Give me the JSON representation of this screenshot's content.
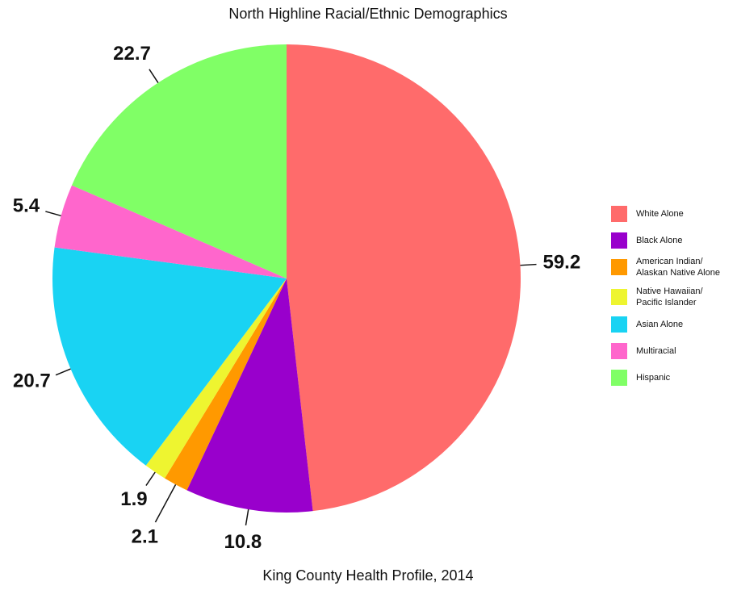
{
  "chart_data": {
    "type": "pie",
    "title": "North Highline Racial/Ethnic Demographics",
    "subtitle": "King County Health Profile, 2014",
    "categories": [
      "White Alone",
      "Black Alone",
      "American Indian/ Alaskan Native Alone",
      "Native Hawaiian/ Pacific Islander",
      "Asian Alone",
      "Multiracial",
      "Hispanic"
    ],
    "values": [
      59.2,
      10.8,
      2.1,
      1.9,
      20.7,
      5.4,
      22.7
    ],
    "colors": [
      "#ff6b6b",
      "#9900cc",
      "#ff9900",
      "#eef530",
      "#19d3f3",
      "#ff66cc",
      "#80ff66"
    ],
    "legend": "right"
  }
}
